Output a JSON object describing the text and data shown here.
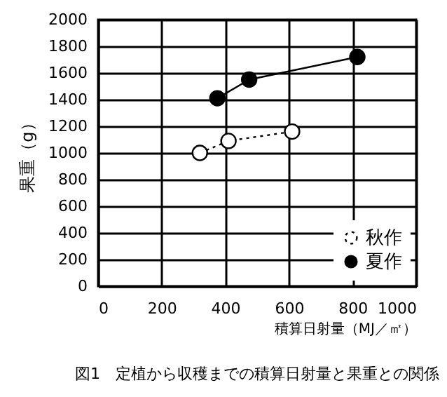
{
  "chart_data": {
    "type": "line",
    "title": "図1　定植から収穫までの積算日射量と果重との関係",
    "xlabel": "積算日射量（MJ／㎡）",
    "ylabel": "果重（g）",
    "series": [
      {
        "name": "秋作",
        "color": "#000000",
        "line_style": "dotted",
        "x": [
          320,
          410,
          610
        ],
        "values": [
          1000,
          1090,
          1160
        ]
      },
      {
        "name": "夏作",
        "color": "#000000",
        "line_style": "solid",
        "x": [
          375,
          475,
          815
        ],
        "values": [
          1410,
          1550,
          1720
        ]
      }
    ],
    "xlim": [
      0,
      1000
    ],
    "xticks": [
      0,
      200,
      400,
      600,
      800,
      1000
    ],
    "ylim": [
      0,
      2000
    ],
    "yticks": [
      0,
      200,
      400,
      600,
      800,
      1000,
      1200,
      1400,
      1600,
      1800,
      2000
    ],
    "grid": true,
    "legend": "bottom right",
    "marker": "circle"
  }
}
